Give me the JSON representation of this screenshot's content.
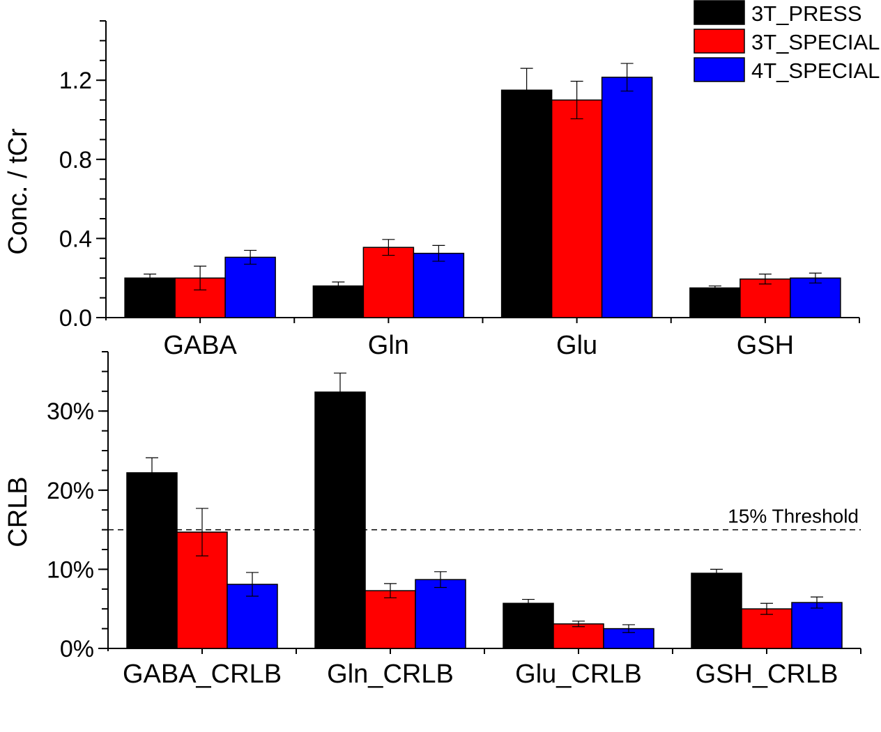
{
  "legend": [
    {
      "name": "3T_PRESS",
      "color": "#000000"
    },
    {
      "name": "3T_SPECIAL",
      "color": "#ff0000"
    },
    {
      "name": "4T_SPECIAL",
      "color": "#0000ff"
    }
  ],
  "chart_data": [
    {
      "type": "bar",
      "ylabel": "Conc. / tCr",
      "xlabel": "",
      "ylim": [
        0,
        1.5
      ],
      "yticks": [
        0.0,
        0.4,
        0.8,
        1.2
      ],
      "ytick_labels": [
        "0.0",
        "0.4",
        "0.8",
        "1.2"
      ],
      "minor_step": 0.1,
      "categories": [
        "GABA",
        "Gln",
        "Glu",
        "GSH"
      ],
      "legend_position": "top-right",
      "series": [
        {
          "name": "3T_PRESS",
          "values": [
            0.2,
            0.16,
            1.15,
            0.15
          ],
          "errors": [
            0.02,
            0.02,
            0.11,
            0.01
          ]
        },
        {
          "name": "3T_SPECIAL",
          "values": [
            0.2,
            0.355,
            1.1,
            0.195
          ],
          "errors": [
            0.06,
            0.04,
            0.095,
            0.025
          ]
        },
        {
          "name": "4T_SPECIAL",
          "values": [
            0.305,
            0.325,
            1.215,
            0.2
          ],
          "errors": [
            0.035,
            0.04,
            0.07,
            0.025
          ]
        }
      ]
    },
    {
      "type": "bar",
      "ylabel": "CRLB",
      "xlabel": "",
      "ylim": [
        0,
        37.5
      ],
      "yticks": [
        0,
        10,
        20,
        30
      ],
      "ytick_labels": [
        "0%",
        "10%",
        "20%",
        "30%"
      ],
      "minor_step": 2.5,
      "categories": [
        "GABA_CRLB",
        "Gln_CRLB",
        "Glu_CRLB",
        "GSH_CRLB"
      ],
      "threshold": {
        "value": 15,
        "label": "15% Threshold"
      },
      "series": [
        {
          "name": "3T_PRESS",
          "values": [
            22.2,
            32.4,
            5.7,
            9.5
          ],
          "errors": [
            1.9,
            2.4,
            0.5,
            0.5
          ]
        },
        {
          "name": "3T_SPECIAL",
          "values": [
            14.7,
            7.3,
            3.1,
            5.0
          ],
          "errors": [
            3.0,
            0.9,
            0.35,
            0.7
          ]
        },
        {
          "name": "4T_SPECIAL",
          "values": [
            8.1,
            8.7,
            2.5,
            5.8
          ],
          "errors": [
            1.5,
            1.0,
            0.5,
            0.7
          ]
        }
      ]
    }
  ]
}
